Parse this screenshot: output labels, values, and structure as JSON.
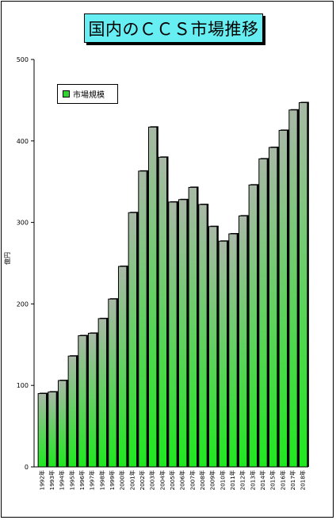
{
  "chart_data": {
    "type": "bar",
    "title": "国内のＣＣＳ市場推移",
    "ylabel": "億円",
    "xlabel": "",
    "ylim": [
      0,
      500
    ],
    "yticks": [
      0,
      100,
      200,
      300,
      400,
      500
    ],
    "legend": "top-left",
    "grid": false,
    "categories": [
      "1992年",
      "1993年",
      "1994年",
      "1995年",
      "1996年",
      "1997年",
      "1998年",
      "1999年",
      "2000年",
      "2001年",
      "2002年",
      "2003年",
      "2004年",
      "2005年",
      "2006年",
      "2007年",
      "2008年",
      "2009年",
      "2010年",
      "2011年",
      "2012年",
      "2013年",
      "2014年",
      "2015年",
      "2016年",
      "2017年",
      "2018年"
    ],
    "series": [
      {
        "name": "市場規模",
        "values": [
          90,
          92,
          106,
          136,
          161,
          164,
          182,
          206,
          246,
          312,
          363,
          417,
          380,
          325,
          328,
          343,
          322,
          295,
          277,
          286,
          308,
          346,
          378,
          392,
          413,
          438,
          447
        ]
      }
    ],
    "colors": {
      "title_bg": "#66eef2",
      "bar_top": "#a8b8a6",
      "bar_bottom": "#1fe81f",
      "legend_swatch": "#33d133"
    }
  }
}
